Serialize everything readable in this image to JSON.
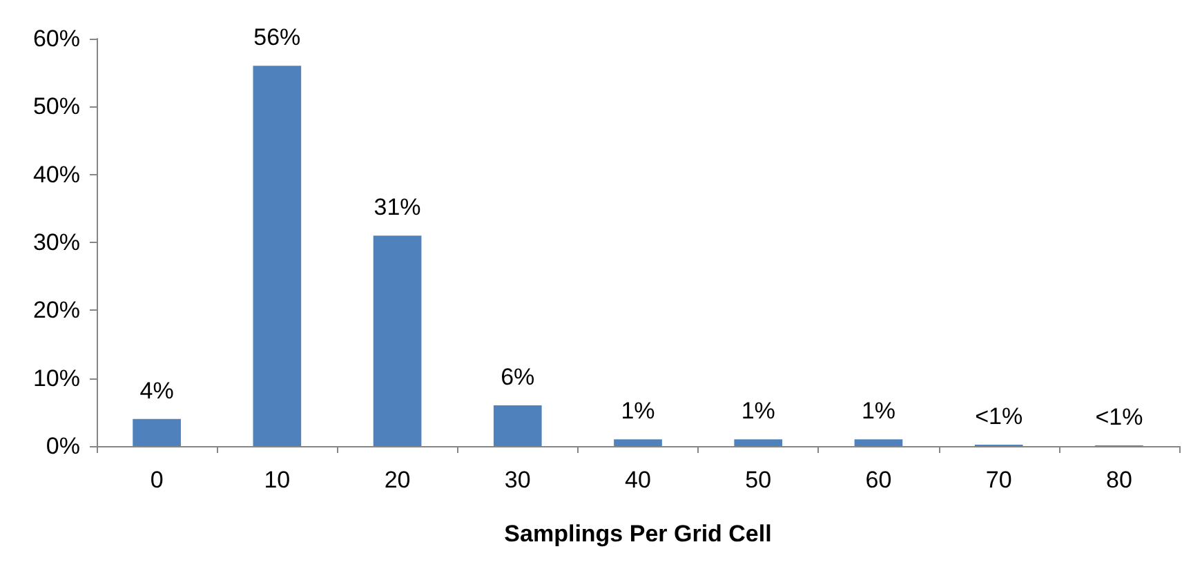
{
  "chart_data": {
    "type": "bar",
    "xlabel": "Samplings Per Grid Cell",
    "categories": [
      "0",
      "10",
      "20",
      "30",
      "40",
      "50",
      "60",
      "70",
      "80"
    ],
    "values": [
      4,
      56,
      31,
      6,
      1,
      1,
      1,
      0.2,
      0.1
    ],
    "value_labels": [
      "4%",
      "56%",
      "31%",
      "6%",
      "1%",
      "1%",
      "1%",
      "<1%",
      "<1%"
    ],
    "color": "#4f81bd",
    "ylim": [
      0,
      60
    ],
    "yticks": [
      {
        "value": 0,
        "label": "0%"
      },
      {
        "value": 10,
        "label": "10%"
      },
      {
        "value": 20,
        "label": "20%"
      },
      {
        "value": 30,
        "label": "30%"
      },
      {
        "value": 40,
        "label": "40%"
      },
      {
        "value": 50,
        "label": "50%"
      },
      {
        "value": 60,
        "label": "60%"
      }
    ],
    "grid": false
  }
}
